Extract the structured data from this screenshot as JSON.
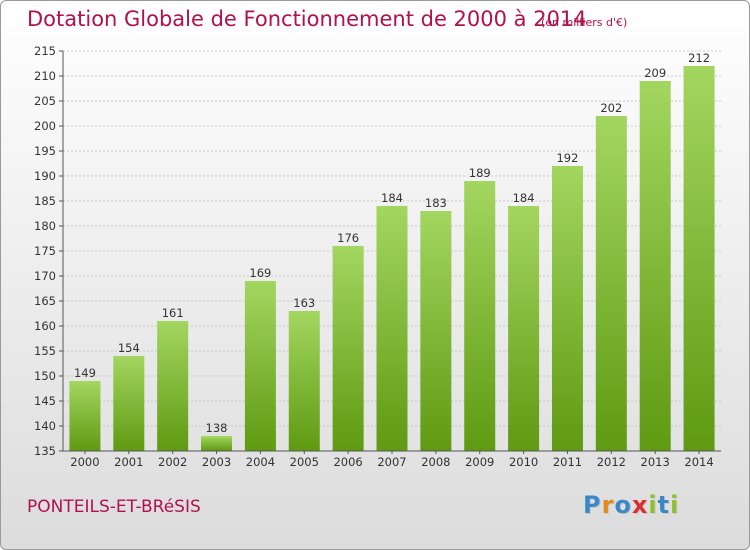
{
  "header": {
    "title": "Dotation Globale de Fonctionnement de 2000 à 2014",
    "subtitle": "(en milliers d'€)"
  },
  "footer": {
    "commune": "PONTEILS-ET-BRéSIS",
    "logo_letters": [
      {
        "ch": "P",
        "color": "#3b87c8"
      },
      {
        "ch": "r",
        "color": "#e08a1e"
      },
      {
        "ch": "o",
        "color": "#3b87c8"
      },
      {
        "ch": "x",
        "color": "#d92f2f"
      },
      {
        "ch": "i",
        "color": "#8fbf2f"
      },
      {
        "ch": "t",
        "color": "#3b87c8"
      },
      {
        "ch": "i",
        "color": "#8fbf2f"
      }
    ]
  },
  "colors": {
    "title": "#b0124b",
    "bar_light": "#a3d660",
    "bar_dark": "#5f9a12",
    "grid": "#c8c8c8"
  },
  "chart_data": {
    "type": "bar",
    "categories": [
      "2000",
      "2001",
      "2002",
      "2003",
      "2004",
      "2005",
      "2006",
      "2007",
      "2008",
      "2009",
      "2010",
      "2011",
      "2012",
      "2013",
      "2014"
    ],
    "values": [
      149,
      154,
      161,
      138,
      169,
      163,
      176,
      184,
      183,
      189,
      184,
      192,
      202,
      209,
      212
    ],
    "data_labels": [
      "149",
      "154",
      "161",
      "138",
      "169",
      "163",
      "176",
      "184",
      "183",
      "189",
      "184",
      "192",
      "202",
      "209",
      "212"
    ],
    "yticks": [
      135,
      140,
      145,
      150,
      155,
      160,
      165,
      170,
      175,
      180,
      185,
      190,
      195,
      200,
      205,
      210,
      215
    ],
    "ylim": [
      135,
      215
    ],
    "grid": true
  }
}
